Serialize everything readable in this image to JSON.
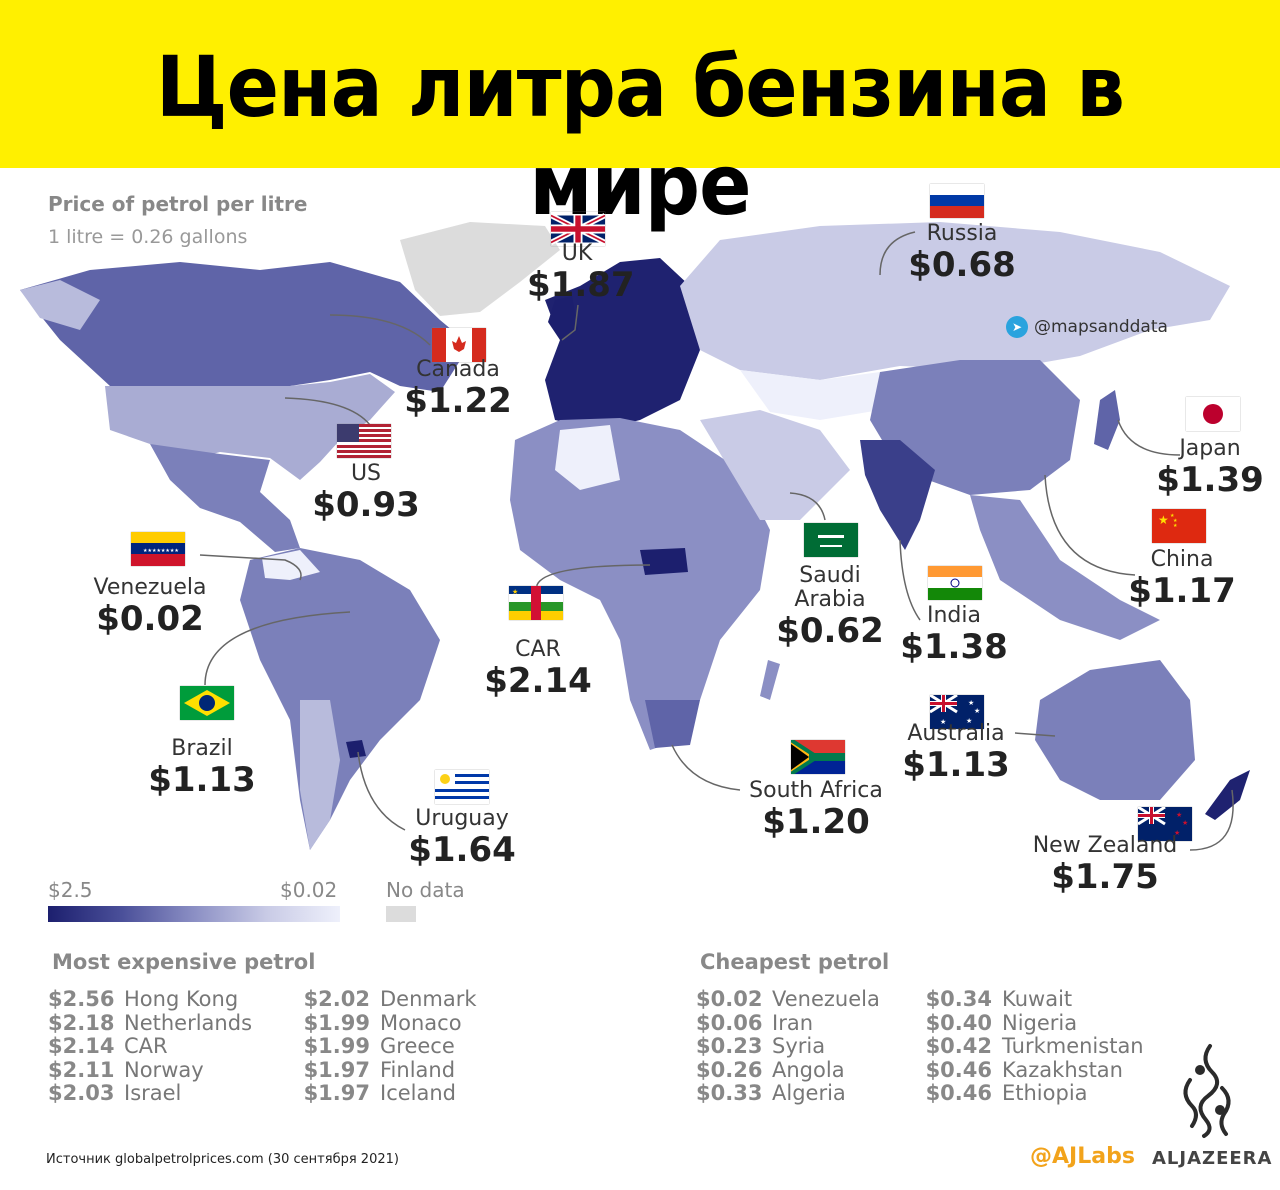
{
  "banner_title": "Цена литра бензина в мире",
  "subtitle": "Price of petrol per litre",
  "note": "1 litre = 0.26 gallons",
  "handle": "@mapsanddata",
  "callouts": [
    {
      "id": "uk",
      "name": "UK",
      "price": "$1.87"
    },
    {
      "id": "russia",
      "name": "Russia",
      "price": "$0.68"
    },
    {
      "id": "canada",
      "name": "Canada",
      "price": "$1.22"
    },
    {
      "id": "us",
      "name": "US",
      "price": "$0.93"
    },
    {
      "id": "japan",
      "name": "Japan",
      "price": "$1.39"
    },
    {
      "id": "china",
      "name": "China",
      "price": "$1.17"
    },
    {
      "id": "venezuela",
      "name": "Venezuela",
      "price": "$0.02"
    },
    {
      "id": "car",
      "name": "CAR",
      "price": "$2.14"
    },
    {
      "id": "saudi",
      "name": "Saudi\nArabia",
      "price": "$0.62"
    },
    {
      "id": "india",
      "name": "India",
      "price": "$1.38"
    },
    {
      "id": "brazil",
      "name": "Brazil",
      "price": "$1.13"
    },
    {
      "id": "australia",
      "name": "Australia",
      "price": "$1.13"
    },
    {
      "id": "south_africa",
      "name": "South Africa",
      "price": "$1.20"
    },
    {
      "id": "uruguay",
      "name": "Uruguay",
      "price": "$1.64"
    },
    {
      "id": "new_zealand",
      "name": "New Zealand",
      "price": "$1.75"
    }
  ],
  "legend": {
    "high_label": "$2.5",
    "low_label": "$0.02",
    "nodata_label": "No data",
    "scale_colors": [
      "#1c1f6e",
      "#4a4f99",
      "#8b8fc4",
      "#c9cbe6",
      "#eef0fb"
    ],
    "nodata_color": "#dcdcdc"
  },
  "most_expensive": {
    "title": "Most expensive petrol",
    "items": [
      {
        "value": "$2.56",
        "country": "Hong Kong"
      },
      {
        "value": "$2.18",
        "country": "Netherlands"
      },
      {
        "value": "$2.14",
        "country": "CAR"
      },
      {
        "value": "$2.11",
        "country": "Norway"
      },
      {
        "value": "$2.03",
        "country": "Israel"
      },
      {
        "value": "$2.02",
        "country": "Denmark"
      },
      {
        "value": "$1.99",
        "country": "Monaco"
      },
      {
        "value": "$1.99",
        "country": "Greece"
      },
      {
        "value": "$1.97",
        "country": "Finland"
      },
      {
        "value": "$1.97",
        "country": "Iceland"
      }
    ]
  },
  "cheapest": {
    "title": "Cheapest petrol",
    "items": [
      {
        "value": "$0.02",
        "country": "Venezuela"
      },
      {
        "value": "$0.06",
        "country": "Iran"
      },
      {
        "value": "$0.23",
        "country": "Syria"
      },
      {
        "value": "$0.26",
        "country": "Angola"
      },
      {
        "value": "$0.33",
        "country": "Algeria"
      },
      {
        "value": "$0.34",
        "country": "Kuwait"
      },
      {
        "value": "$0.40",
        "country": "Nigeria"
      },
      {
        "value": "$0.42",
        "country": "Turkmenistan"
      },
      {
        "value": "$0.46",
        "country": "Kazakhstan"
      },
      {
        "value": "$0.46",
        "country": "Ethiopia"
      }
    ]
  },
  "source": "Источник globalpetrolprices.com (30 сентября 2021)",
  "brand": {
    "ajlabs": "@AJLabs",
    "aljazeera": "ALJAZEERA",
    "accent": "#f2a31b"
  }
}
